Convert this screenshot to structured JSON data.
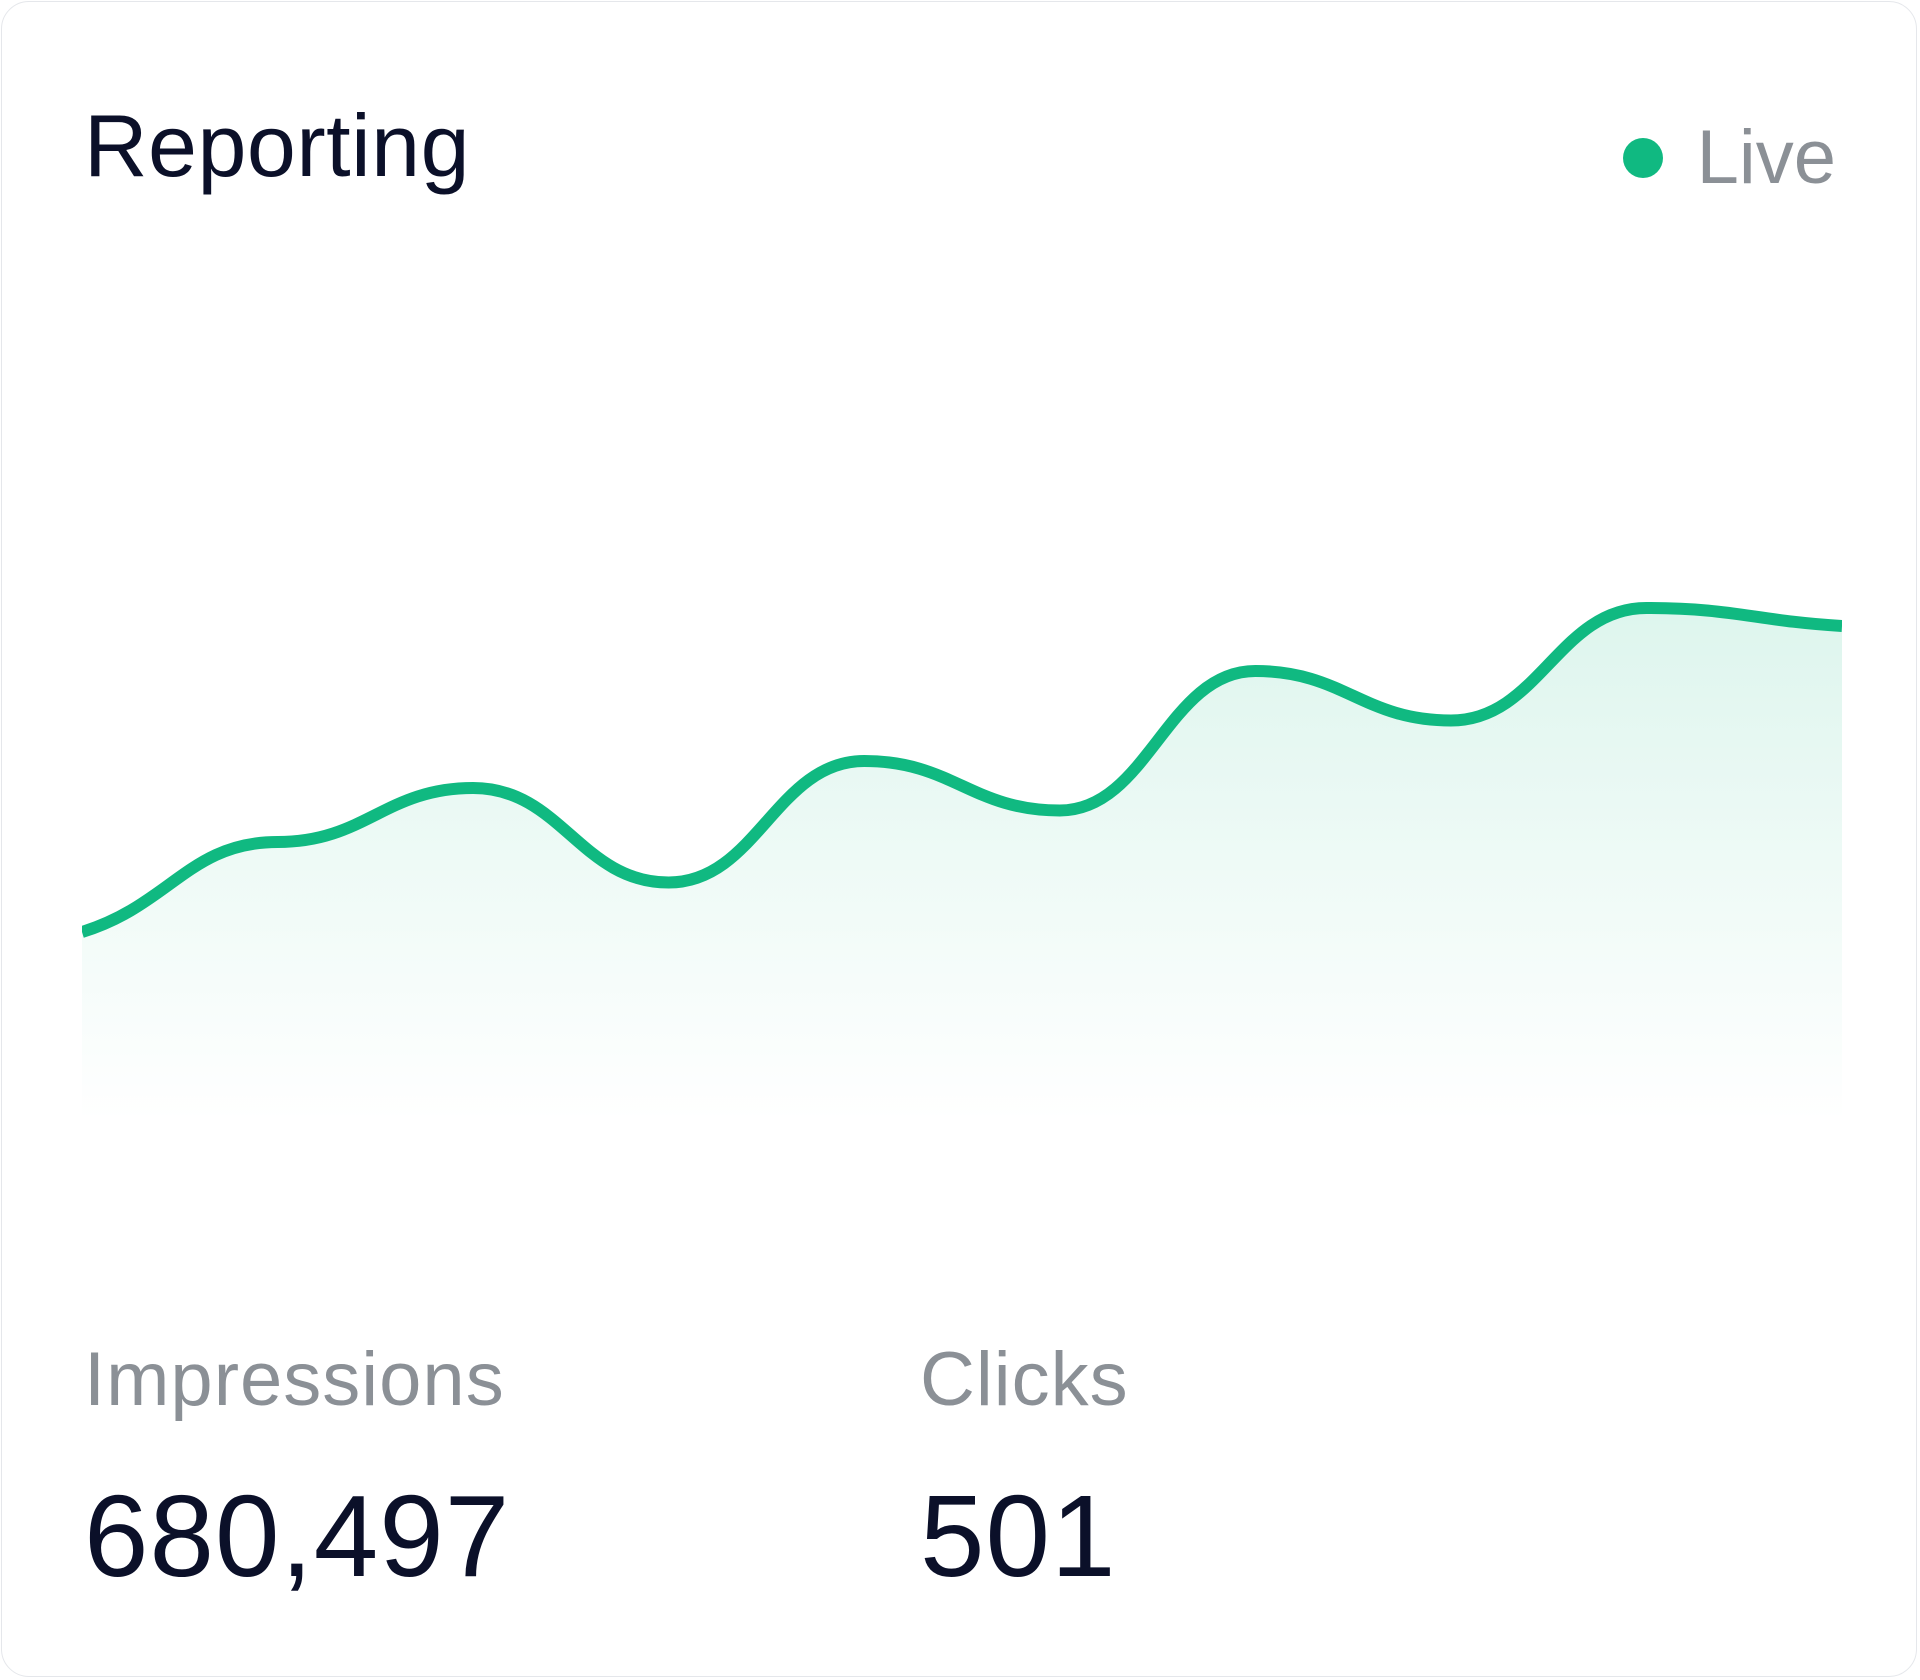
{
  "card": {
    "title": "Reporting",
    "status": {
      "label": "Live",
      "color": "#10b981"
    }
  },
  "chart_data": {
    "type": "area",
    "x": [
      0,
      1,
      2,
      3,
      4,
      5,
      6,
      7,
      8,
      9
    ],
    "values": [
      20,
      40,
      52,
      31,
      58,
      47,
      78,
      67,
      92,
      88
    ],
    "ylim": [
      0,
      100
    ],
    "line_color": "#10b981",
    "grid": false
  },
  "stats": [
    {
      "label": "Impressions",
      "value": "680,497"
    },
    {
      "label": "Clicks",
      "value": "501"
    }
  ]
}
